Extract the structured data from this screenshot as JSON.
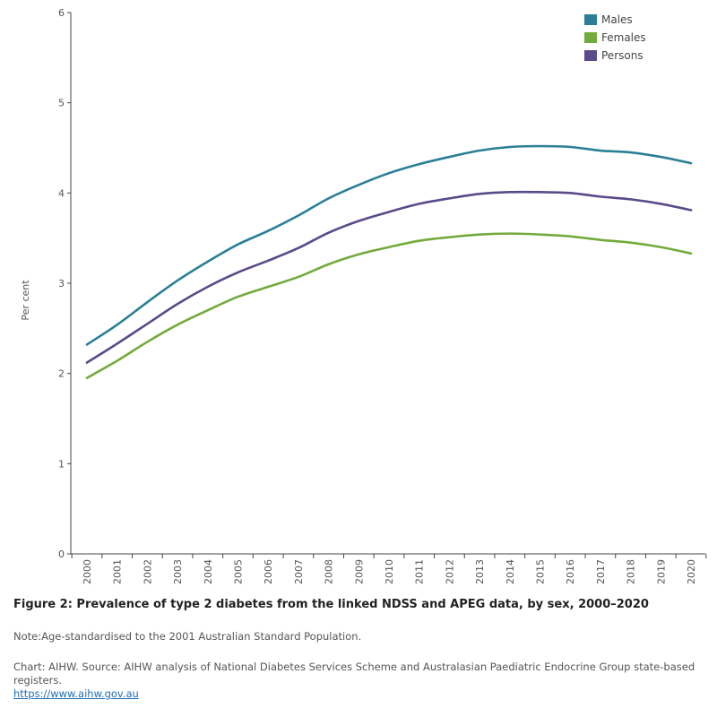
{
  "chart_data": {
    "type": "line",
    "title": "",
    "xlabel": "",
    "ylabel": "Per cent",
    "ylim": [
      0,
      6
    ],
    "yticks": [
      0,
      1,
      2,
      3,
      4,
      5,
      6
    ],
    "grid": false,
    "legend_position": "top-right",
    "categories": [
      "2000",
      "2001",
      "2002",
      "2003",
      "2004",
      "2005",
      "2006",
      "2007",
      "2008",
      "2009",
      "2010",
      "2011",
      "2012",
      "2013",
      "2014",
      "2015",
      "2016",
      "2017",
      "2018",
      "2019",
      "2020"
    ],
    "series": [
      {
        "name": "Males",
        "color": "#2a7f97",
        "values": [
          2.32,
          2.54,
          2.79,
          3.03,
          3.24,
          3.43,
          3.58,
          3.75,
          3.94,
          4.09,
          4.22,
          4.32,
          4.4,
          4.47,
          4.51,
          4.52,
          4.51,
          4.47,
          4.45,
          4.4,
          4.33
        ]
      },
      {
        "name": "Females",
        "color": "#72ab3c",
        "values": [
          1.95,
          2.14,
          2.35,
          2.54,
          2.7,
          2.85,
          2.96,
          3.07,
          3.21,
          3.32,
          3.4,
          3.47,
          3.51,
          3.54,
          3.55,
          3.54,
          3.52,
          3.48,
          3.45,
          3.4,
          3.33
        ]
      },
      {
        "name": "Persons",
        "color": "#5a4a8a",
        "values": [
          2.12,
          2.33,
          2.55,
          2.77,
          2.96,
          3.12,
          3.25,
          3.39,
          3.56,
          3.69,
          3.79,
          3.88,
          3.94,
          3.99,
          4.01,
          4.01,
          4.0,
          3.96,
          3.93,
          3.88,
          3.81
        ]
      }
    ]
  },
  "figure": {
    "title": "Figure 2: Prevalence of type 2 diabetes from the linked NDSS and APEG data, by sex, 2000–2020",
    "note": "Note:Age-standardised to the 2001 Australian Standard Population.",
    "source": "Chart: AIHW. Source: AIHW analysis of National Diabetes Services Scheme and Australasian Paediatric Endocrine Group state-based registers.",
    "link": "https://www.aihw.gov.au"
  }
}
